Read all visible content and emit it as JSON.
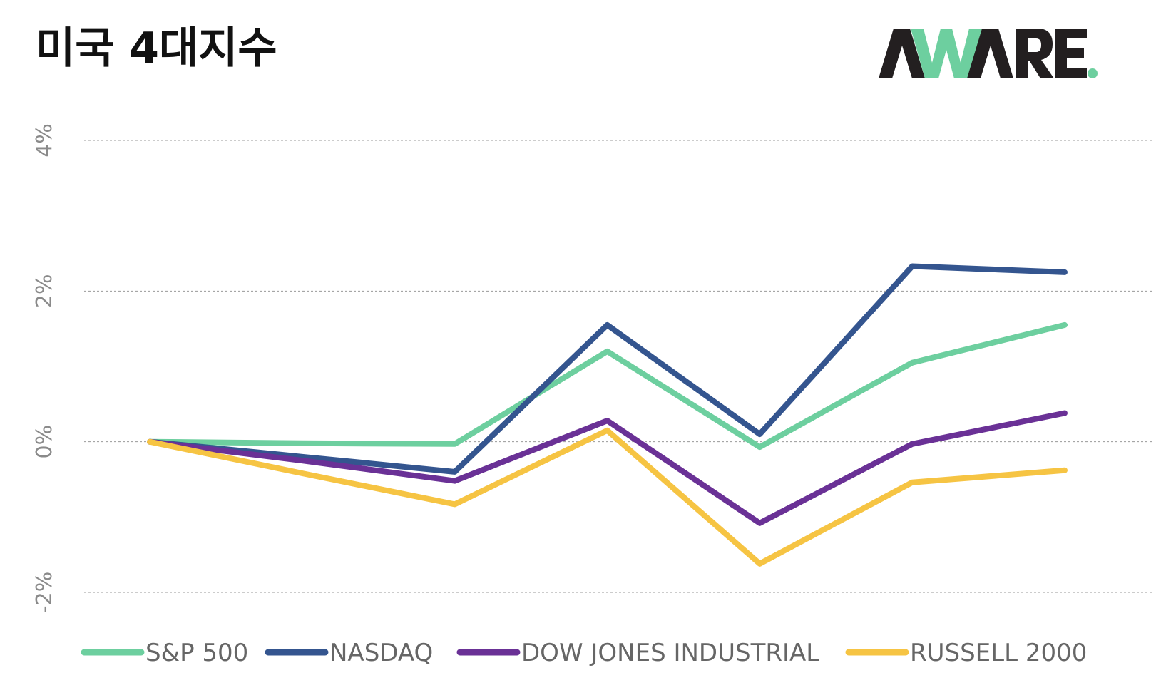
{
  "header": {
    "title": "미국 4대지수",
    "logo_text": "AWARE."
  },
  "colors": {
    "logo_dark": "#231f20",
    "logo_accent": "#6dcf9f"
  },
  "chart_data": {
    "type": "line",
    "title": "미국 4대지수",
    "xlabel": "",
    "ylabel": "",
    "x": [
      1,
      2,
      3,
      4,
      5,
      6,
      7
    ],
    "ylim": [
      -2.5,
      4
    ],
    "y_ticks": [
      -2,
      0,
      2,
      4
    ],
    "y_tick_labels": [
      "-2%",
      "0%",
      "2%",
      "4%"
    ],
    "grid": true,
    "legend": "bottom",
    "series": [
      {
        "name": "S&P 500",
        "color": "#6dcf9f",
        "values": [
          0.0,
          -0.02,
          -0.03,
          1.2,
          -0.07,
          1.05,
          1.55
        ]
      },
      {
        "name": "NASDAQ",
        "color": "#34558f",
        "values": [
          0.0,
          -0.2,
          -0.4,
          1.55,
          0.1,
          2.33,
          2.25
        ]
      },
      {
        "name": "DOW JONES INDUSTRIAL",
        "color": "#6a3196",
        "values": [
          0.0,
          -0.25,
          -0.52,
          0.28,
          -1.08,
          -0.03,
          0.38
        ]
      },
      {
        "name": "RUSSELL 2000",
        "color": "#f6c443",
        "values": [
          0.0,
          -0.42,
          -0.83,
          0.15,
          -1.62,
          -0.54,
          -0.38
        ]
      }
    ]
  }
}
